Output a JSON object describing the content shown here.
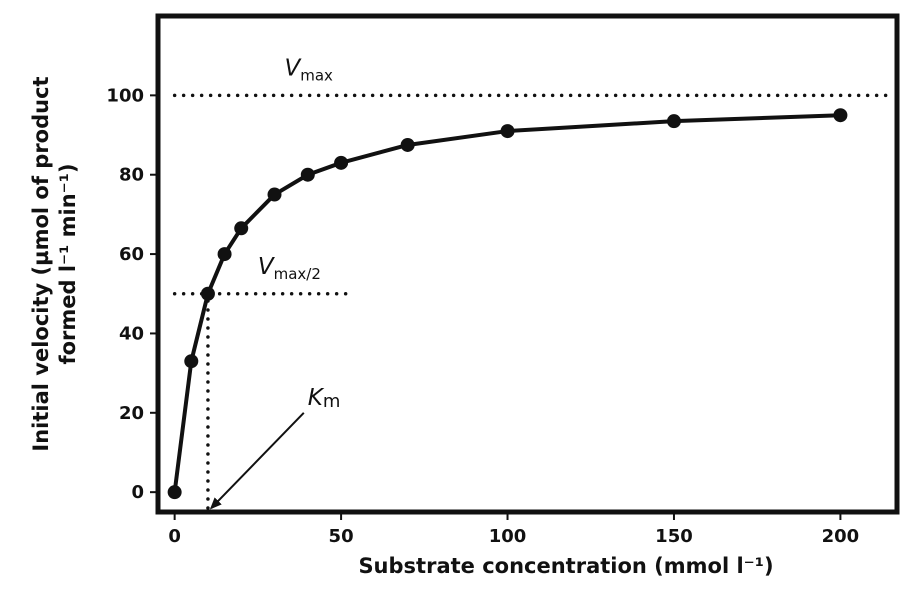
{
  "chart_data": {
    "type": "line",
    "title": "",
    "xlabel": "Substrate concentration (mmol l⁻¹)",
    "ylabel_line1": "Initial velocity (µmol of product",
    "ylabel_line2": "formed l⁻¹ min⁻¹)",
    "xlim": [
      -5,
      217
    ],
    "ylim": [
      -5,
      120
    ],
    "xticks": [
      0,
      50,
      100,
      150,
      200
    ],
    "yticks": [
      0,
      20,
      40,
      60,
      80,
      100
    ],
    "grid": false,
    "series": [
      {
        "name": "Initial velocity",
        "x": [
          0,
          5,
          10,
          15,
          20,
          30,
          40,
          50,
          70,
          100,
          150,
          200
        ],
        "y": [
          0,
          33,
          50,
          60,
          66.5,
          75,
          80,
          83,
          87.5,
          91,
          93.5,
          95
        ]
      }
    ],
    "reference_lines": {
      "vmax": {
        "y": 100,
        "x_from": 0,
        "x_to": 217
      },
      "half_vmax": {
        "y": 50,
        "x_from": 0,
        "x_to": 52
      },
      "km": {
        "x": 10,
        "y_from": -5,
        "y_to": 50
      }
    },
    "annotations": {
      "vmax": {
        "main": "V",
        "sub": "max",
        "x": 33,
        "y": 105
      },
      "half_vmax": {
        "main": "V",
        "sub": "max/2",
        "x": 25,
        "y": 55
      },
      "km": {
        "main": "K",
        "sub": "m",
        "x": 40,
        "y": 22,
        "arrow_to_x": 11,
        "arrow_to_y": -4
      }
    }
  }
}
